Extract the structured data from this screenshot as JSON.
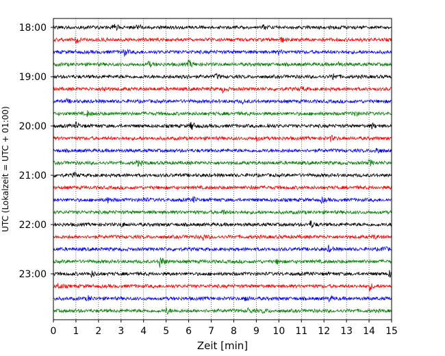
{
  "chart_data": {
    "type": "line",
    "title": "",
    "xlabel": "Zeit  [min]",
    "ylabel": "UTC (Lokalzeit = UTC + 01:00)",
    "xlim": [
      0,
      15
    ],
    "x_ticks": [
      "0",
      "1",
      "2",
      "3",
      "4",
      "5",
      "6",
      "7",
      "8",
      "9",
      "10",
      "11",
      "12",
      "13",
      "14",
      "15"
    ],
    "y_tick_labels": [
      "18:00",
      "19:00",
      "20:00",
      "21:00",
      "22:00",
      "23:00"
    ],
    "grid": "vertical dotted lines at each minute",
    "legend": "none",
    "colors": [
      "#000000",
      "#ff0000",
      "#0000ff",
      "#008000"
    ],
    "series": [
      {
        "start": "18:00",
        "color": "#000000",
        "events": [
          [
            2.65,
            1.0
          ],
          [
            3.7,
            0.6
          ],
          [
            9.3,
            0.5
          ]
        ]
      },
      {
        "start": "18:15",
        "color": "#ff0000",
        "events": [
          [
            1.0,
            0.5
          ],
          [
            10.1,
            0.5
          ]
        ]
      },
      {
        "start": "18:30",
        "color": "#0000ff",
        "events": [
          [
            3.1,
            0.9
          ],
          [
            10.0,
            0.4
          ]
        ]
      },
      {
        "start": "18:45",
        "color": "#008000",
        "events": [
          [
            4.2,
            0.6
          ],
          [
            6.0,
            0.8
          ],
          [
            12.6,
            0.5
          ]
        ]
      },
      {
        "start": "19:00",
        "color": "#000000",
        "events": [
          [
            5.7,
            0.8
          ],
          [
            7.2,
            0.5
          ],
          [
            12.4,
            0.7
          ]
        ]
      },
      {
        "start": "19:15",
        "color": "#ff0000",
        "events": [
          [
            2.2,
            0.6
          ],
          [
            7.5,
            0.5
          ],
          [
            11.0,
            0.4
          ]
        ]
      },
      {
        "start": "19:30",
        "color": "#0000ff",
        "events": [
          [
            0.6,
            0.3
          ],
          [
            8.4,
            0.3
          ]
        ]
      },
      {
        "start": "19:45",
        "color": "#008000",
        "events": [
          [
            1.5,
            0.5
          ],
          [
            13.3,
            0.6
          ]
        ]
      },
      {
        "start": "20:00",
        "color": "#000000",
        "events": [
          [
            1.0,
            0.7
          ],
          [
            6.1,
            1.1
          ],
          [
            9.5,
            0.4
          ],
          [
            14.1,
            0.6
          ]
        ]
      },
      {
        "start": "20:15",
        "color": "#ff0000",
        "events": [
          [
            9.0,
            0.4
          ],
          [
            12.3,
            0.5
          ]
        ]
      },
      {
        "start": "20:30",
        "color": "#0000ff",
        "events": [
          [
            14.3,
            0.9
          ]
        ]
      },
      {
        "start": "20:45",
        "color": "#008000",
        "events": [
          [
            3.7,
            0.6
          ],
          [
            14.0,
            0.7
          ]
        ]
      },
      {
        "start": "21:00",
        "color": "#000000",
        "events": [
          [
            0.9,
            0.5
          ]
        ]
      },
      {
        "start": "21:15",
        "color": "#ff0000",
        "events": [
          [
            8.8,
            0.4
          ]
        ]
      },
      {
        "start": "21:30",
        "color": "#0000ff",
        "events": [
          [
            2.4,
            0.5
          ],
          [
            4.0,
            0.4
          ],
          [
            6.2,
            0.5
          ],
          [
            11.9,
            0.5
          ]
        ]
      },
      {
        "start": "21:45",
        "color": "#008000",
        "events": [
          [
            7.5,
            0.4
          ]
        ]
      },
      {
        "start": "22:00",
        "color": "#000000",
        "events": [
          [
            3.0,
            0.5
          ],
          [
            11.4,
            0.8
          ]
        ]
      },
      {
        "start": "22:15",
        "color": "#ff0000",
        "events": [
          [
            6.6,
            0.7
          ],
          [
            14.2,
            0.4
          ]
        ]
      },
      {
        "start": "22:30",
        "color": "#0000ff",
        "events": [
          [
            12.2,
            0.6
          ],
          [
            14.6,
            0.7
          ]
        ]
      },
      {
        "start": "22:45",
        "color": "#008000",
        "events": [
          [
            4.7,
            1.6
          ],
          [
            9.9,
            0.4
          ]
        ]
      },
      {
        "start": "23:00",
        "color": "#000000",
        "events": [
          [
            1.7,
            0.6
          ],
          [
            14.9,
            0.7
          ]
        ]
      },
      {
        "start": "23:15",
        "color": "#ff0000",
        "events": [
          [
            0.2,
            0.7
          ],
          [
            14.0,
            0.9
          ]
        ]
      },
      {
        "start": "23:30",
        "color": "#0000ff",
        "events": [
          [
            1.5,
            0.6
          ],
          [
            8.5,
            0.6
          ],
          [
            12.2,
            0.5
          ]
        ]
      },
      {
        "start": "23:45",
        "color": "#008000",
        "events": [
          [
            5.0,
            0.7
          ],
          [
            8.6,
            0.6
          ],
          [
            9.3,
            0.5
          ]
        ]
      }
    ]
  }
}
